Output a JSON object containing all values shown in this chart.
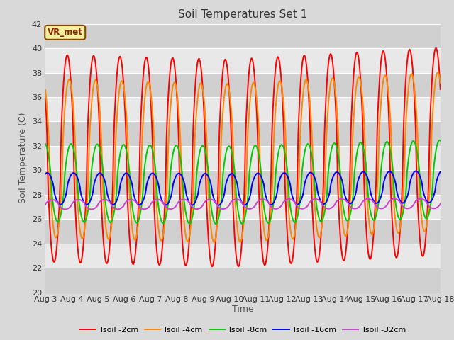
{
  "title": "Soil Temperatures Set 1",
  "xlabel": "Time",
  "ylabel": "Soil Temperature (C)",
  "ylim": [
    20,
    42
  ],
  "tick_labels": [
    "Aug 3",
    "Aug 4",
    "Aug 5",
    "Aug 6",
    "Aug 7",
    "Aug 8",
    "Aug 9",
    "Aug 10",
    "Aug 11",
    "Aug 12",
    "Aug 13",
    "Aug 14",
    "Aug 15",
    "Aug 16",
    "Aug 17",
    "Aug 18"
  ],
  "annotation": "VR_met",
  "series": [
    {
      "label": "Tsoil -2cm",
      "color": "#ff0000",
      "amplitude": 8.5,
      "mean": 31.0,
      "phase_shift": 0.58,
      "trend": -0.06,
      "trend_turn": 7.0,
      "trend2": 0.12
    },
    {
      "label": "Tsoil -4cm",
      "color": "#ff8800",
      "amplitude": 6.5,
      "mean": 31.0,
      "phase_shift": 0.65,
      "trend": -0.06,
      "trend_turn": 7.0,
      "trend2": 0.12
    },
    {
      "label": "Tsoil -8cm",
      "color": "#00cc00",
      "amplitude": 3.2,
      "mean": 29.0,
      "phase_shift": 0.72,
      "trend": -0.03,
      "trend_turn": 7.0,
      "trend2": 0.06
    },
    {
      "label": "Tsoil -16cm",
      "color": "#0000ff",
      "amplitude": 1.3,
      "mean": 28.5,
      "phase_shift": 0.82,
      "trend": -0.01,
      "trend_turn": 7.0,
      "trend2": 0.03
    },
    {
      "label": "Tsoil -32cm",
      "color": "#cc44cc",
      "amplitude": 0.4,
      "mean": 27.2,
      "phase_shift": 0.0,
      "trend": 0.005,
      "trend_turn": 7.0,
      "trend2": 0.005
    }
  ],
  "bg_color": "#d9d9d9",
  "plot_bg_color_light": "#e8e8e8",
  "plot_bg_color_dark": "#d0d0d0",
  "grid_color": "#ffffff",
  "title_fontsize": 11,
  "label_fontsize": 9,
  "tick_fontsize": 8,
  "line_width": 1.4
}
